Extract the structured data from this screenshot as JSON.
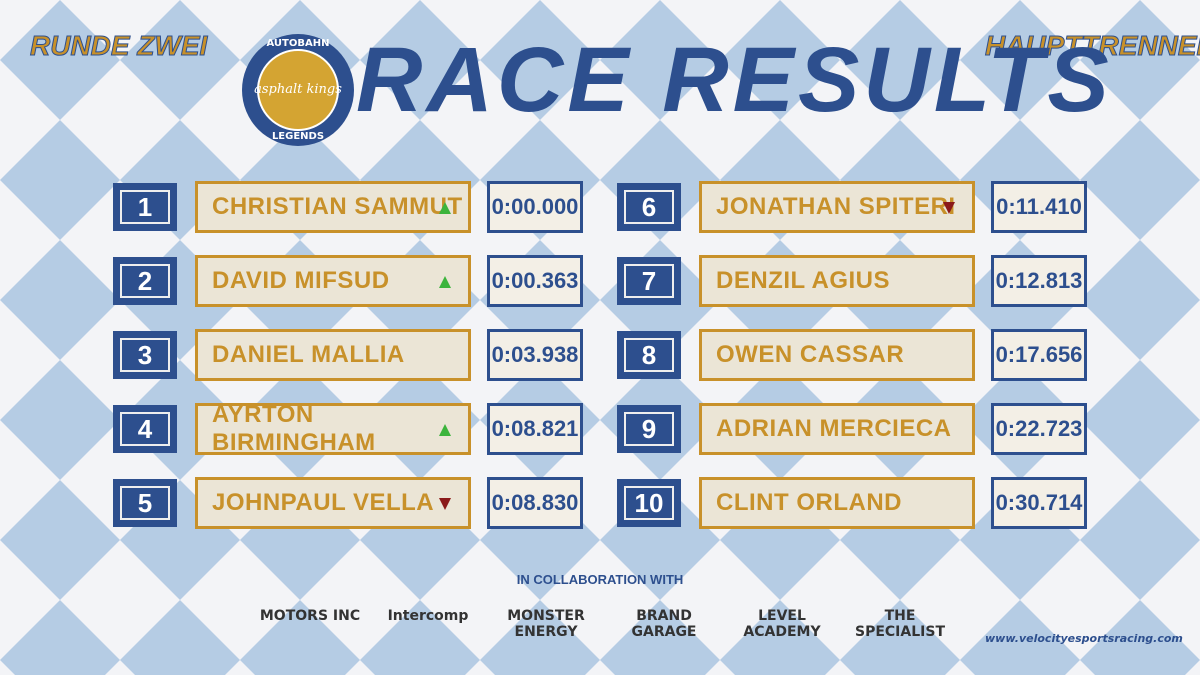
{
  "header": {
    "round": "RUNDE ZWEI",
    "session": "HAUPTTRENNEN",
    "title": "RACE RESULTS",
    "logo": {
      "top": "AUTOBAHN",
      "middle": "asphalt kings",
      "bottom": "LEGENDS"
    }
  },
  "results": [
    {
      "position": "1",
      "driver": "CHRISTIAN SAMMUT",
      "time": "0:00.000",
      "trend": "up"
    },
    {
      "position": "2",
      "driver": "DAVID MIFSUD",
      "time": "0:00.363",
      "trend": "up"
    },
    {
      "position": "3",
      "driver": "DANIEL MALLIA",
      "time": "0:03.938",
      "trend": "none"
    },
    {
      "position": "4",
      "driver": "AYRTON BIRMINGHAM",
      "time": "0:08.821",
      "trend": "up"
    },
    {
      "position": "5",
      "driver": "JOHNPAUL VELLA",
      "time": "0:08.830",
      "trend": "down"
    },
    {
      "position": "6",
      "driver": "JONATHAN SPITERI",
      "time": "0:11.410",
      "trend": "down"
    },
    {
      "position": "7",
      "driver": "DENZIL AGIUS",
      "time": "0:12.813",
      "trend": "none"
    },
    {
      "position": "8",
      "driver": "OWEN CASSAR",
      "time": "0:17.656",
      "trend": "none"
    },
    {
      "position": "9",
      "driver": "ADRIAN MERCIECA",
      "time": "0:22.723",
      "trend": "none"
    },
    {
      "position": "10",
      "driver": "CLINT ORLAND",
      "time": "0:30.714",
      "trend": "none"
    }
  ],
  "footer": {
    "collaboration": "IN COLLABORATION WITH",
    "sponsors": [
      "MOTORS INC",
      "Intercomp",
      "MONSTER ENERGY",
      "BRAND GARAGE",
      "LEVEL ACADEMY",
      "THE SPECIALIST"
    ],
    "website": "www.velocityesportsracing.com"
  }
}
